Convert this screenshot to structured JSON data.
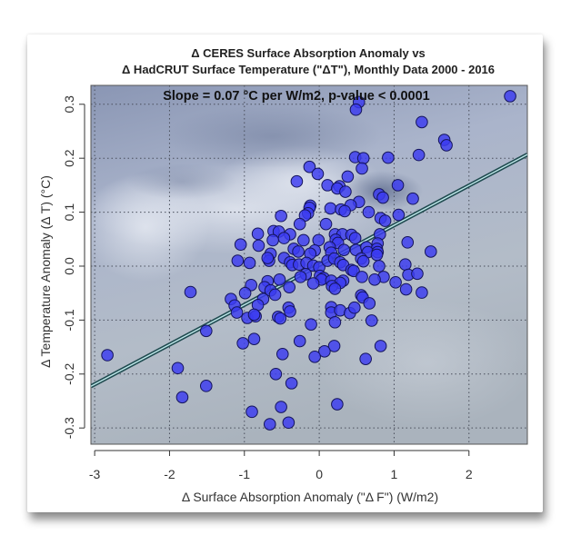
{
  "chart_data": {
    "type": "scatter",
    "title_line1": "Δ CERES Surface Absorption Anomaly vs",
    "title_line2": "Δ HadCRUT Surface Temperature (\"ΔT\"), Monthly Data 2000 - 2016",
    "annotation": "Slope = 0.07 °C per W/m2, p-value < 0.0001",
    "xlabel": "Δ Surface Absorption Anomaly (\"Δ F\") (W/m2)",
    "ylabel": "Δ Temperature Anomaly  (Δ T) (°C)",
    "xlim": [
      -3.05,
      2.78
    ],
    "ylim": [
      -0.33,
      0.335
    ],
    "xticks": [
      -3,
      -2,
      -1,
      0,
      1,
      2
    ],
    "xtick_labels": [
      "-3",
      "-2",
      "-1",
      "0",
      "1",
      "2"
    ],
    "yticks": [
      -0.3,
      -0.2,
      -0.1,
      0.0,
      0.1,
      0.2,
      0.3
    ],
    "ytick_labels": [
      "-0.3",
      "-0.2",
      "-0.1",
      "0.0",
      "0.1",
      "0.2",
      "0.3"
    ],
    "grid": true,
    "point_color": "#3b3bf0",
    "point_edge_color": "#14145a",
    "line_color": "#1f4a4f",
    "line_highlight_color": "#bfe8ea",
    "regression": {
      "slope": 0.0737,
      "intercept": 0.002
    },
    "points": [
      [
        2.55,
        0.315
      ],
      [
        0.53,
        0.304
      ],
      [
        0.49,
        0.29
      ],
      [
        1.37,
        0.267
      ],
      [
        1.67,
        0.234
      ],
      [
        1.7,
        0.224
      ],
      [
        0.48,
        0.202
      ],
      [
        0.59,
        0.2
      ],
      [
        0.92,
        0.201
      ],
      [
        1.33,
        0.206
      ],
      [
        0.57,
        0.181
      ],
      [
        -0.13,
        0.184
      ],
      [
        -0.02,
        0.171
      ],
      [
        -0.3,
        0.157
      ],
      [
        0.38,
        0.166
      ],
      [
        0.11,
        0.15
      ],
      [
        0.27,
        0.148
      ],
      [
        0.24,
        0.144
      ],
      [
        0.35,
        0.138
      ],
      [
        1.05,
        0.15
      ],
      [
        0.8,
        0.133
      ],
      [
        0.85,
        0.127
      ],
      [
        1.25,
        0.125
      ],
      [
        0.53,
        0.119
      ],
      [
        0.42,
        0.113
      ],
      [
        0.15,
        0.107
      ],
      [
        0.29,
        0.105
      ],
      [
        0.34,
        0.102
      ],
      [
        -0.12,
        0.112
      ],
      [
        -0.13,
        0.108
      ],
      [
        -0.15,
        0.098
      ],
      [
        -0.19,
        0.094
      ],
      [
        -0.26,
        0.078
      ],
      [
        0.66,
        0.1
      ],
      [
        1.06,
        0.095
      ],
      [
        -0.51,
        0.093
      ],
      [
        0.09,
        0.078
      ],
      [
        0.82,
        0.089
      ],
      [
        0.88,
        0.084
      ],
      [
        -0.61,
        0.065
      ],
      [
        -0.54,
        0.064
      ],
      [
        -0.39,
        0.059
      ],
      [
        -0.82,
        0.06
      ],
      [
        -0.47,
        0.052
      ],
      [
        -0.21,
        0.048
      ],
      [
        -0.01,
        0.048
      ],
      [
        0.21,
        0.059
      ],
      [
        0.31,
        0.059
      ],
      [
        0.43,
        0.058
      ],
      [
        0.48,
        0.052
      ],
      [
        0.81,
        0.059
      ],
      [
        0.78,
        0.042
      ],
      [
        1.18,
        0.044
      ],
      [
        1.49,
        0.027
      ],
      [
        -1.05,
        0.04
      ],
      [
        -0.81,
        0.038
      ],
      [
        0.22,
        0.049
      ],
      [
        0.25,
        0.043
      ],
      [
        0.14,
        0.035
      ],
      [
        -0.62,
        0.048
      ],
      [
        -0.65,
        0.023
      ],
      [
        -0.34,
        0.032
      ],
      [
        -0.28,
        0.027
      ],
      [
        -0.06,
        0.029
      ],
      [
        -0.12,
        0.023
      ],
      [
        0.16,
        0.025
      ],
      [
        0.33,
        0.03
      ],
      [
        0.49,
        0.03
      ],
      [
        0.63,
        0.035
      ],
      [
        0.77,
        0.032
      ],
      [
        0.65,
        0.026
      ],
      [
        0.78,
        0.026
      ],
      [
        0.77,
        0.021
      ],
      [
        -1.09,
        0.01
      ],
      [
        -0.93,
        0.006
      ],
      [
        -0.67,
        0.01
      ],
      [
        -0.69,
        0.015
      ],
      [
        -0.47,
        0.015
      ],
      [
        -0.39,
        0.007
      ],
      [
        -0.36,
        0.002
      ],
      [
        -0.27,
        0.003
      ],
      [
        -0.17,
        0.006
      ],
      [
        -0.08,
        0.001
      ],
      [
        0.0,
        -0.002
      ],
      [
        0.11,
        0.01
      ],
      [
        0.2,
        0.014
      ],
      [
        0.28,
        0.007
      ],
      [
        0.32,
        0.002
      ],
      [
        0.56,
        0.014
      ],
      [
        0.59,
        0.009
      ],
      [
        1.15,
        0.003
      ],
      [
        0.8,
        0.0
      ],
      [
        0.43,
        -0.007
      ],
      [
        0.46,
        -0.009
      ],
      [
        1.19,
        -0.016
      ],
      [
        1.31,
        -0.014
      ],
      [
        0.86,
        -0.02
      ],
      [
        0.74,
        -0.025
      ],
      [
        0.57,
        -0.02
      ],
      [
        0.01,
        -0.018
      ],
      [
        0.06,
        -0.022
      ],
      [
        0.03,
        -0.025
      ],
      [
        -0.18,
        -0.015
      ],
      [
        -0.25,
        -0.02
      ],
      [
        0.16,
        -0.027
      ],
      [
        0.32,
        -0.027
      ],
      [
        0.28,
        -0.031
      ],
      [
        0.17,
        -0.037
      ],
      [
        0.21,
        -0.042
      ],
      [
        -0.08,
        -0.032
      ],
      [
        -0.4,
        -0.039
      ],
      [
        -0.53,
        -0.025
      ],
      [
        -0.69,
        -0.028
      ],
      [
        1.02,
        -0.03
      ],
      [
        1.16,
        -0.043
      ],
      [
        1.37,
        -0.049
      ],
      [
        -1.72,
        -0.048
      ],
      [
        -0.73,
        -0.039
      ],
      [
        -0.65,
        -0.045
      ],
      [
        -0.91,
        -0.035
      ],
      [
        -0.99,
        -0.05
      ],
      [
        -0.59,
        -0.053
      ],
      [
        0.56,
        -0.054
      ],
      [
        0.58,
        -0.058
      ],
      [
        -0.75,
        -0.061
      ],
      [
        -1.18,
        -0.061
      ],
      [
        -1.13,
        -0.073
      ],
      [
        -0.82,
        -0.072
      ],
      [
        0.67,
        -0.069
      ],
      [
        -1.1,
        -0.086
      ],
      [
        -0.96,
        -0.096
      ],
      [
        -0.85,
        -0.093
      ],
      [
        -0.87,
        -0.09
      ],
      [
        -0.55,
        -0.094
      ],
      [
        -0.52,
        -0.097
      ],
      [
        -0.41,
        -0.077
      ],
      [
        -0.39,
        -0.084
      ],
      [
        0.16,
        -0.076
      ],
      [
        0.16,
        -0.086
      ],
      [
        0.28,
        -0.082
      ],
      [
        0.41,
        -0.087
      ],
      [
        0.47,
        -0.077
      ],
      [
        0.21,
        -0.104
      ],
      [
        0.7,
        -0.101
      ],
      [
        -0.11,
        -0.108
      ],
      [
        -1.51,
        -0.12
      ],
      [
        -1.02,
        -0.143
      ],
      [
        -0.87,
        -0.135
      ],
      [
        -0.26,
        -0.139
      ],
      [
        0.2,
        -0.148
      ],
      [
        0.82,
        -0.148
      ],
      [
        -0.49,
        -0.163
      ],
      [
        0.07,
        -0.158
      ],
      [
        -0.06,
        -0.168
      ],
      [
        0.62,
        -0.172
      ],
      [
        -2.83,
        -0.165
      ],
      [
        -1.89,
        -0.189
      ],
      [
        -0.58,
        -0.2
      ],
      [
        -0.37,
        -0.217
      ],
      [
        -1.51,
        -0.222
      ],
      [
        -1.83,
        -0.243
      ],
      [
        0.24,
        -0.256
      ],
      [
        -0.51,
        -0.261
      ],
      [
        -0.9,
        -0.27
      ],
      [
        -0.66,
        -0.293
      ],
      [
        -0.41,
        -0.29
      ]
    ]
  }
}
